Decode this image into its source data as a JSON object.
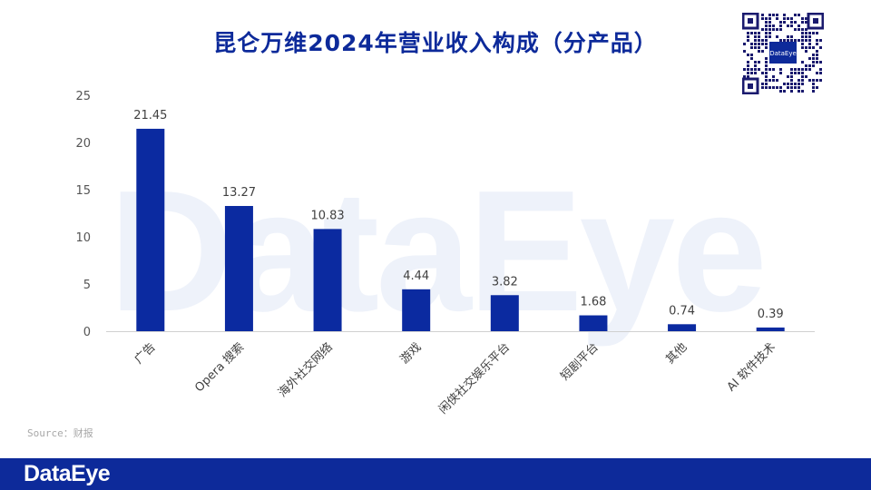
{
  "page": {
    "title": "昆仑万维2024年营业收入构成（分产品）",
    "watermark": "DataEye",
    "qr_label": "DataEye",
    "source": "Source：财报",
    "footer_logo": "DataEye"
  },
  "colors": {
    "brand": "#0d2a9a",
    "bar": "#0b2aa0",
    "watermark": "#eef2fa"
  },
  "chart_data": {
    "type": "bar",
    "title": "昆仑万维2024年营业收入构成（分产品）",
    "categories": [
      "广告",
      "Opera 搜索",
      "海外社交网络",
      "游戏",
      "闲侠社交娱乐平台",
      "短剧平台",
      "其他",
      "AI 软件技术"
    ],
    "values": [
      21.45,
      13.27,
      10.83,
      4.44,
      3.82,
      1.68,
      0.74,
      0.39
    ],
    "value_labels": [
      "21.45",
      "13.27",
      "10.83",
      "4.44",
      "3.82",
      "1.68",
      "0.74",
      "0.39"
    ],
    "ylim": [
      0,
      25
    ],
    "yticks": [
      0,
      5,
      10,
      15,
      20,
      25
    ],
    "xlabel": "",
    "ylabel": "",
    "grid": false,
    "legend": "none"
  }
}
